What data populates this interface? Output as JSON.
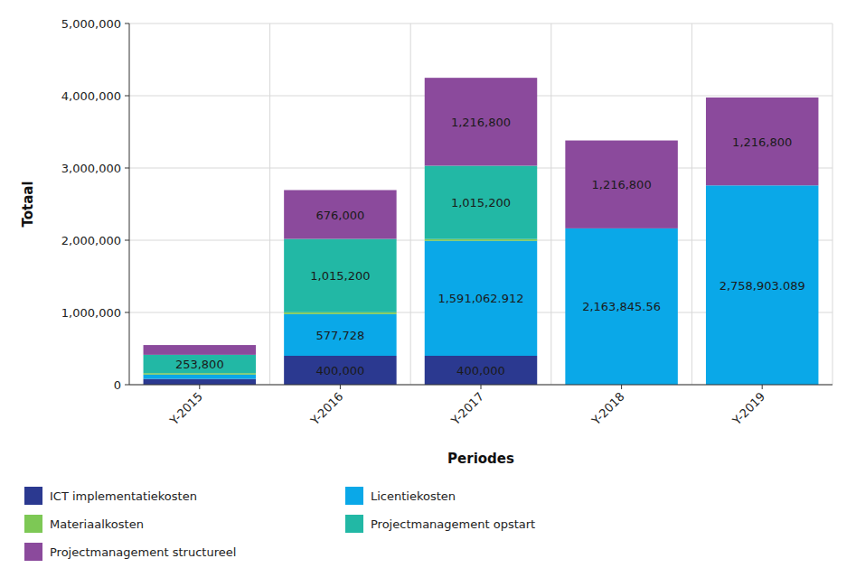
{
  "chart_data": {
    "type": "bar",
    "stacked": true,
    "data_labels": true,
    "grid": true,
    "legend": "bottom",
    "x_label": "Periodes",
    "y_label": "Totaal",
    "categories": [
      "Y-2015",
      "Y-2016",
      "Y-2017",
      "Y-2018",
      "Y-2019"
    ],
    "ylim": [
      0,
      5000000
    ],
    "yticks": [
      0,
      {
        "value": 1000000,
        "label": "1,000,000"
      },
      {
        "value": 2000000,
        "label": "2,000,000"
      },
      {
        "value": 3000000,
        "label": "3,000,000"
      },
      {
        "value": 4000000,
        "label": "4,000,000"
      },
      {
        "value": 5000000,
        "label": "5,000,000"
      }
    ],
    "series": [
      {
        "name": "ICT implementatiekosten",
        "color": "#2b3990",
        "values": [
          80000,
          400000,
          400000,
          0,
          0
        ],
        "value_labels": [
          null,
          "400,000",
          "400,000",
          null,
          null
        ]
      },
      {
        "name": "Licentiekosten",
        "color": "#0aa8e8",
        "values": [
          60000,
          577728,
          1591062.912,
          2163845.56,
          2758903.089
        ],
        "value_labels": [
          null,
          "577,728",
          "1,591,062.912",
          "2,163,845.56",
          "2,758,903.089"
        ]
      },
      {
        "name": "Materiaalkosten",
        "color": "#7dc855",
        "values": [
          20000,
          25000,
          25000,
          0,
          0
        ],
        "value_labels": [
          null,
          null,
          null,
          null,
          null
        ]
      },
      {
        "name": "Projectmanagement opstart",
        "color": "#22b8a5",
        "values": [
          253800,
          1015200,
          1015200,
          0,
          0
        ],
        "value_labels": [
          "253,800",
          "1,015,200",
          "1,015,200",
          null,
          null
        ]
      },
      {
        "name": "Projectmanagement structureel",
        "color": "#8b4a9c",
        "values": [
          135200,
          676000,
          1216800,
          1216800,
          1216800
        ],
        "value_labels": [
          null,
          "676,000",
          "1,216,800",
          "1,216,800",
          "1,216,800"
        ]
      }
    ]
  }
}
